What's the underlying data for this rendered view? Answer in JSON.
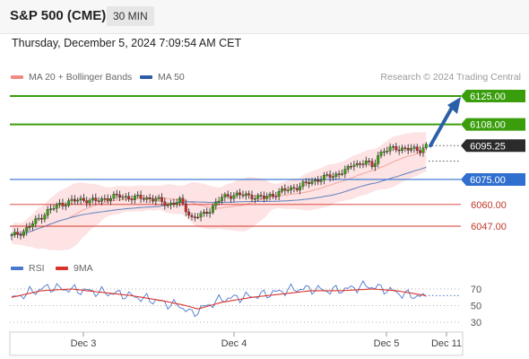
{
  "header": {
    "title": "S&P 500 (CME)",
    "timeframe": "30 MIN"
  },
  "datetime": "Thursday, December 5, 2024 7:09:54 AM CET",
  "legend": {
    "ma20": "MA 20 + Bollinger Bands",
    "ma50": "MA 50",
    "rsi": "RSI",
    "ma9": "9MA",
    "credit": "Research © 2024 Trading Central"
  },
  "colors": {
    "up": "#3a9e0c",
    "blue": "#2f6fcf",
    "red": "#d9342b",
    "band": "#fcdada",
    "ma50": "#6b89c2",
    "ma20": "#f08a82"
  },
  "levels": [
    {
      "label": "6125.00",
      "value": 6125.0,
      "kind": "resistance"
    },
    {
      "label": "6108.00",
      "value": 6108.0,
      "kind": "resistance"
    },
    {
      "label": "6095.25",
      "value": 6095.25,
      "kind": "last"
    },
    {
      "label": "6075.00",
      "value": 6075.0,
      "kind": "pivot"
    },
    {
      "label": "6060.00",
      "value": 6060.0,
      "kind": "support"
    },
    {
      "label": "6047.00",
      "value": 6047.0,
      "kind": "support"
    }
  ],
  "x_axis": {
    "labels": [
      "Dec 3",
      "Dec 4",
      "Dec 5",
      "Dec 11"
    ]
  },
  "rsi_axis": {
    "labels": [
      "70",
      "50",
      "30"
    ]
  },
  "chart_data": {
    "type": "candlestick",
    "price_anchors": [
      [
        0,
        6041
      ],
      [
        4,
        6044
      ],
      [
        8,
        6050
      ],
      [
        12,
        6056
      ],
      [
        16,
        6060
      ],
      [
        20,
        6062
      ],
      [
        24,
        6063
      ],
      [
        28,
        6062
      ],
      [
        32,
        6064
      ],
      [
        36,
        6065
      ],
      [
        40,
        6064
      ],
      [
        44,
        6064
      ],
      [
        48,
        6063
      ],
      [
        52,
        6060
      ],
      [
        56,
        6062
      ],
      [
        58,
        6057
      ],
      [
        60,
        6052
      ],
      [
        62,
        6053
      ],
      [
        64,
        6054
      ],
      [
        66,
        6057
      ],
      [
        68,
        6061
      ],
      [
        70,
        6064
      ],
      [
        74,
        6066
      ],
      [
        80,
        6065
      ],
      [
        84,
        6064
      ],
      [
        90,
        6068
      ],
      [
        96,
        6071
      ],
      [
        100,
        6074
      ],
      [
        104,
        6076
      ],
      [
        108,
        6078
      ],
      [
        112,
        6081
      ],
      [
        114,
        6085
      ],
      [
        116,
        6084
      ],
      [
        118,
        6086
      ],
      [
        120,
        6082
      ],
      [
        122,
        6090
      ],
      [
        124,
        6092
      ],
      [
        128,
        6094
      ],
      [
        132,
        6093
      ],
      [
        136,
        6093
      ],
      [
        138,
        6095
      ]
    ],
    "rsi_anchors": [
      [
        0,
        58
      ],
      [
        6,
        66
      ],
      [
        12,
        72
      ],
      [
        18,
        70
      ],
      [
        24,
        68
      ],
      [
        30,
        66
      ],
      [
        36,
        64
      ],
      [
        42,
        60
      ],
      [
        48,
        56
      ],
      [
        52,
        52
      ],
      [
        56,
        50
      ],
      [
        60,
        40
      ],
      [
        64,
        48
      ],
      [
        70,
        58
      ],
      [
        76,
        60
      ],
      [
        82,
        62
      ],
      [
        88,
        66
      ],
      [
        94,
        70
      ],
      [
        100,
        70
      ],
      [
        106,
        68
      ],
      [
        112,
        70
      ],
      [
        118,
        74
      ],
      [
        124,
        70
      ],
      [
        130,
        64
      ],
      [
        138,
        60
      ]
    ],
    "ma9_anchors": [
      [
        0,
        60
      ],
      [
        10,
        68
      ],
      [
        20,
        70
      ],
      [
        30,
        66
      ],
      [
        40,
        62
      ],
      [
        50,
        56
      ],
      [
        58,
        50
      ],
      [
        62,
        46
      ],
      [
        70,
        54
      ],
      [
        80,
        60
      ],
      [
        90,
        64
      ],
      [
        100,
        68
      ],
      [
        110,
        68
      ],
      [
        120,
        70
      ],
      [
        128,
        68
      ],
      [
        138,
        62
      ]
    ]
  }
}
